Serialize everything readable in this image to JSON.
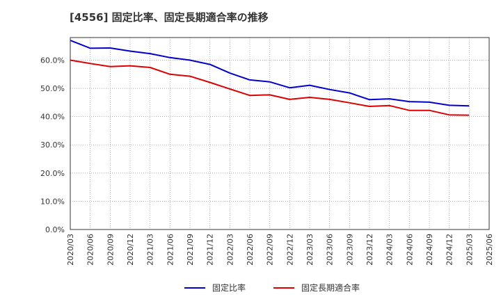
{
  "chart_data": {
    "type": "line",
    "title": "[4556]  固定比率、固定長期適合率の推移",
    "xlabel": "",
    "ylabel": "",
    "ylim": [
      0,
      68
    ],
    "yticks": [
      0,
      10,
      20,
      30,
      40,
      50,
      60
    ],
    "ytick_labels": [
      "0.0%",
      "10.0%",
      "20.0%",
      "30.0%",
      "40.0%",
      "50.0%",
      "60.0%"
    ],
    "grid": true,
    "legend_position": "bottom",
    "x": [
      "2020/03",
      "2020/06",
      "2020/09",
      "2020/12",
      "2021/03",
      "2021/06",
      "2021/09",
      "2021/12",
      "2022/03",
      "2022/06",
      "2022/09",
      "2022/12",
      "2023/03",
      "2023/06",
      "2023/09",
      "2023/12",
      "2024/03",
      "2024/06",
      "2024/09",
      "2024/12",
      "2025/03",
      "2025/06"
    ],
    "series": [
      {
        "name": "固定比率",
        "color": "#0000cc",
        "values": [
          67.0,
          64.2,
          64.3,
          63.2,
          62.3,
          60.9,
          60.0,
          58.5,
          55.4,
          53.0,
          52.3,
          50.2,
          51.1,
          49.6,
          48.4,
          46.0,
          46.3,
          45.3,
          45.1,
          44.0,
          43.8,
          null
        ]
      },
      {
        "name": "固定長期適合率",
        "color": "#dd0000",
        "values": [
          60.0,
          58.8,
          57.7,
          58.0,
          57.4,
          55.0,
          54.3,
          52.1,
          49.8,
          47.5,
          47.7,
          46.1,
          46.8,
          46.1,
          44.9,
          43.6,
          43.9,
          42.2,
          42.2,
          40.6,
          40.5,
          null
        ]
      }
    ]
  }
}
